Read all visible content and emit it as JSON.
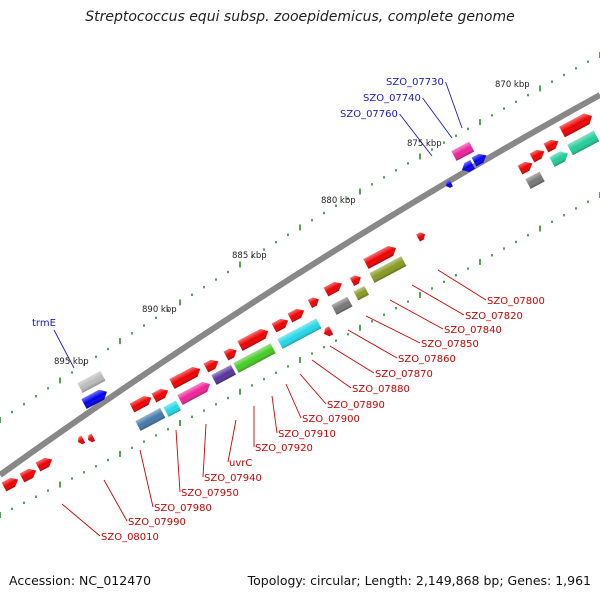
{
  "title": "Streptococcus equi subsp. zooepidemicus, complete genome",
  "footer": {
    "accession": "Accession: NC_012470",
    "topology": "Topology: circular; Length: 2,149,868 bp; Genes: 1,961"
  },
  "ticks": [
    "870 kbp",
    "875 kbp",
    "880 kbp",
    "885 kbp",
    "890 kbp",
    "895 kbp"
  ],
  "labels_blue": [
    "SZO_07730",
    "SZO_07740",
    "SZO_07760",
    "trmE"
  ],
  "labels_red": [
    "SZO_07800",
    "SZO_07820",
    "SZO_07840",
    "SZO_07850",
    "SZO_07860",
    "SZO_07870",
    "SZO_07880",
    "SZO_07890",
    "SZO_07900",
    "SZO_07910",
    "SZO_07920",
    "uvrC",
    "SZO_07940",
    "SZO_07950",
    "SZO_07980",
    "SZO_07990",
    "SZO_08010"
  ],
  "colors": {
    "red": "#ee0000",
    "blue": "#0000ee",
    "magenta": "#ee2299",
    "cyan": "#22d8e8",
    "green": "#44cc22",
    "olive": "#889922",
    "grey": "#777777",
    "steelblue": "#4477aa",
    "indigo": "#553399",
    "teal": "#22cc99",
    "backbone": "#888888",
    "dots": "#2d8a2d"
  }
}
